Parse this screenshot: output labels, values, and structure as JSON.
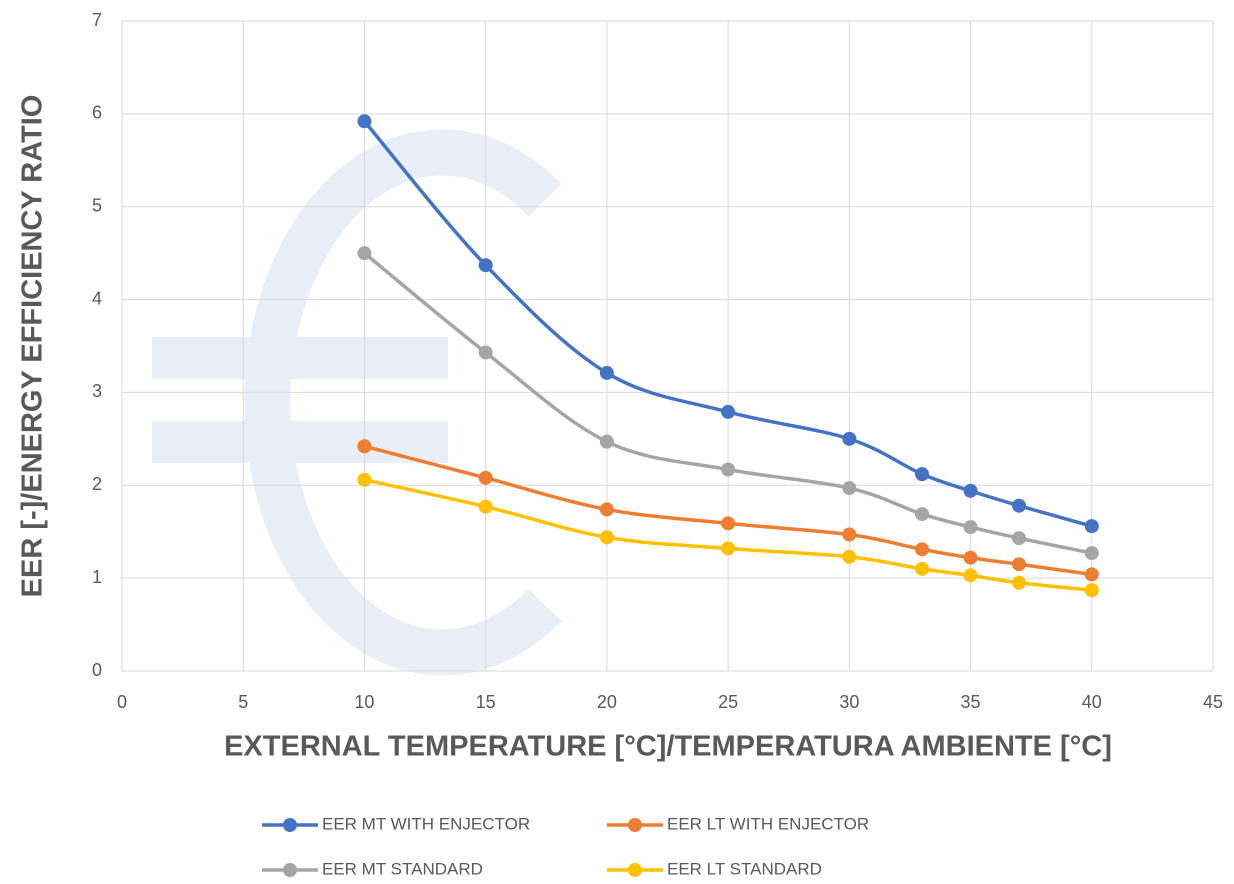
{
  "chart_data": {
    "type": "line",
    "x_label": "EXTERNAL TEMPERATURE [°C]/TEMPERATURA AMBIENTE [°C]",
    "y_label": "EER [-]/ENERGY EFFICIENCY RATIO",
    "x": [
      10,
      15,
      20,
      25,
      30,
      33,
      35,
      37,
      40
    ],
    "series": [
      {
        "name": "EER MT WITH ENJECTOR",
        "color": "#4472c4",
        "values": [
          5.92,
          4.37,
          3.21,
          2.79,
          2.5,
          2.12,
          1.94,
          1.78,
          1.56
        ]
      },
      {
        "name": "EER LT WITH ENJECTOR",
        "color": "#ed7d31",
        "values": [
          2.42,
          2.08,
          1.74,
          1.59,
          1.47,
          1.31,
          1.22,
          1.15,
          1.04
        ]
      },
      {
        "name": "EER MT STANDARD",
        "color": "#a5a5a5",
        "values": [
          4.5,
          3.43,
          2.47,
          2.17,
          1.97,
          1.69,
          1.55,
          1.43,
          1.27
        ]
      },
      {
        "name": "EER LT STANDARD",
        "color": "#ffc000",
        "values": [
          2.06,
          1.77,
          1.44,
          1.32,
          1.23,
          1.1,
          1.03,
          0.95,
          0.87
        ]
      }
    ],
    "xlim": [
      0,
      45
    ],
    "xticks": [
      0,
      5,
      10,
      15,
      20,
      25,
      30,
      35,
      40,
      45
    ],
    "ylim": [
      0,
      7
    ],
    "yticks": [
      0,
      1,
      2,
      3,
      4,
      5,
      6,
      7
    ],
    "grid": true,
    "smooth": true,
    "legend": "bottom"
  }
}
